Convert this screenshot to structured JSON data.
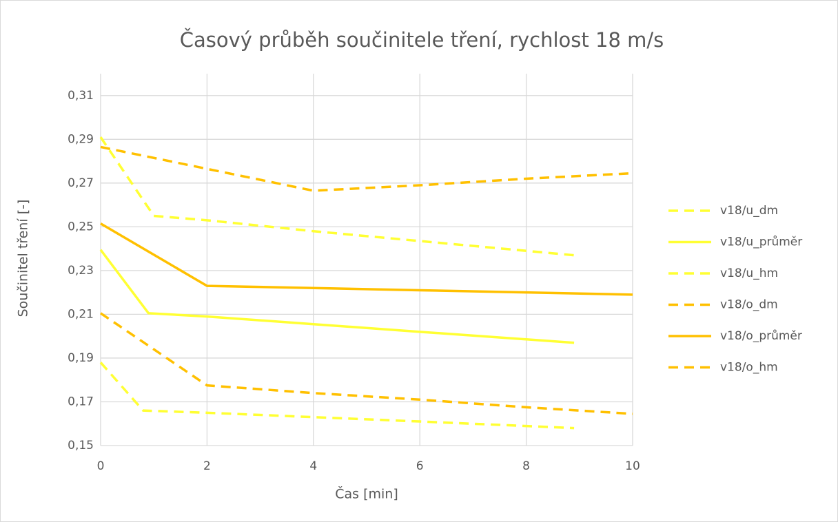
{
  "chart_data": {
    "type": "line",
    "title": "Časový průběh součinitele tření, rychlost 18 m/s",
    "xlabel": "Čas [min]",
    "ylabel": "Součinitel tření [-]",
    "xlim": [
      0,
      10
    ],
    "xticks": [
      0,
      2,
      4,
      6,
      8,
      10
    ],
    "ylim": [
      0.15,
      0.32
    ],
    "yticks": [
      {
        "value": 0.15,
        "label": "0,15"
      },
      {
        "value": 0.17,
        "label": "0,17"
      },
      {
        "value": 0.19,
        "label": "0,19"
      },
      {
        "value": 0.21,
        "label": "0,21"
      },
      {
        "value": 0.23,
        "label": "0,23"
      },
      {
        "value": 0.25,
        "label": "0,25"
      },
      {
        "value": 0.27,
        "label": "0,27"
      },
      {
        "value": 0.29,
        "label": "0,29"
      },
      {
        "value": 0.31,
        "label": "0,31"
      }
    ],
    "grid": true,
    "legend": "right",
    "series": [
      {
        "name": "v18/u_dm",
        "color": "#ffff33",
        "dash": true,
        "x": [
          0,
          1,
          2,
          4,
          6,
          8.9
        ],
        "values": [
          0.291,
          0.255,
          0.253,
          0.248,
          0.2435,
          0.237
        ]
      },
      {
        "name": "v18/u_průměr",
        "color": "#ffff33",
        "dash": false,
        "x": [
          0,
          0.9,
          2,
          4,
          6,
          8.9
        ],
        "values": [
          0.2395,
          0.2105,
          0.209,
          0.2055,
          0.202,
          0.197
        ]
      },
      {
        "name": "v18/u_hm",
        "color": "#ffff33",
        "dash": true,
        "x": [
          0,
          0.8,
          2,
          4,
          6,
          8.9
        ],
        "values": [
          0.188,
          0.166,
          0.165,
          0.163,
          0.161,
          0.158
        ]
      },
      {
        "name": "v18/o_dm",
        "color": "#ffc000",
        "dash": true,
        "x": [
          0,
          2,
          4,
          6,
          8,
          10
        ],
        "values": [
          0.2865,
          0.2765,
          0.2665,
          0.269,
          0.272,
          0.2745
        ]
      },
      {
        "name": "v18/o_průměr",
        "color": "#ffc000",
        "dash": false,
        "x": [
          0,
          2,
          4,
          6,
          8,
          10
        ],
        "values": [
          0.2515,
          0.223,
          0.222,
          0.221,
          0.22,
          0.219
        ]
      },
      {
        "name": "v18/o_hm",
        "color": "#ffc000",
        "dash": true,
        "x": [
          0,
          2,
          4,
          6,
          8,
          10
        ],
        "values": [
          0.2105,
          0.1775,
          0.174,
          0.171,
          0.1675,
          0.1645
        ]
      }
    ]
  }
}
